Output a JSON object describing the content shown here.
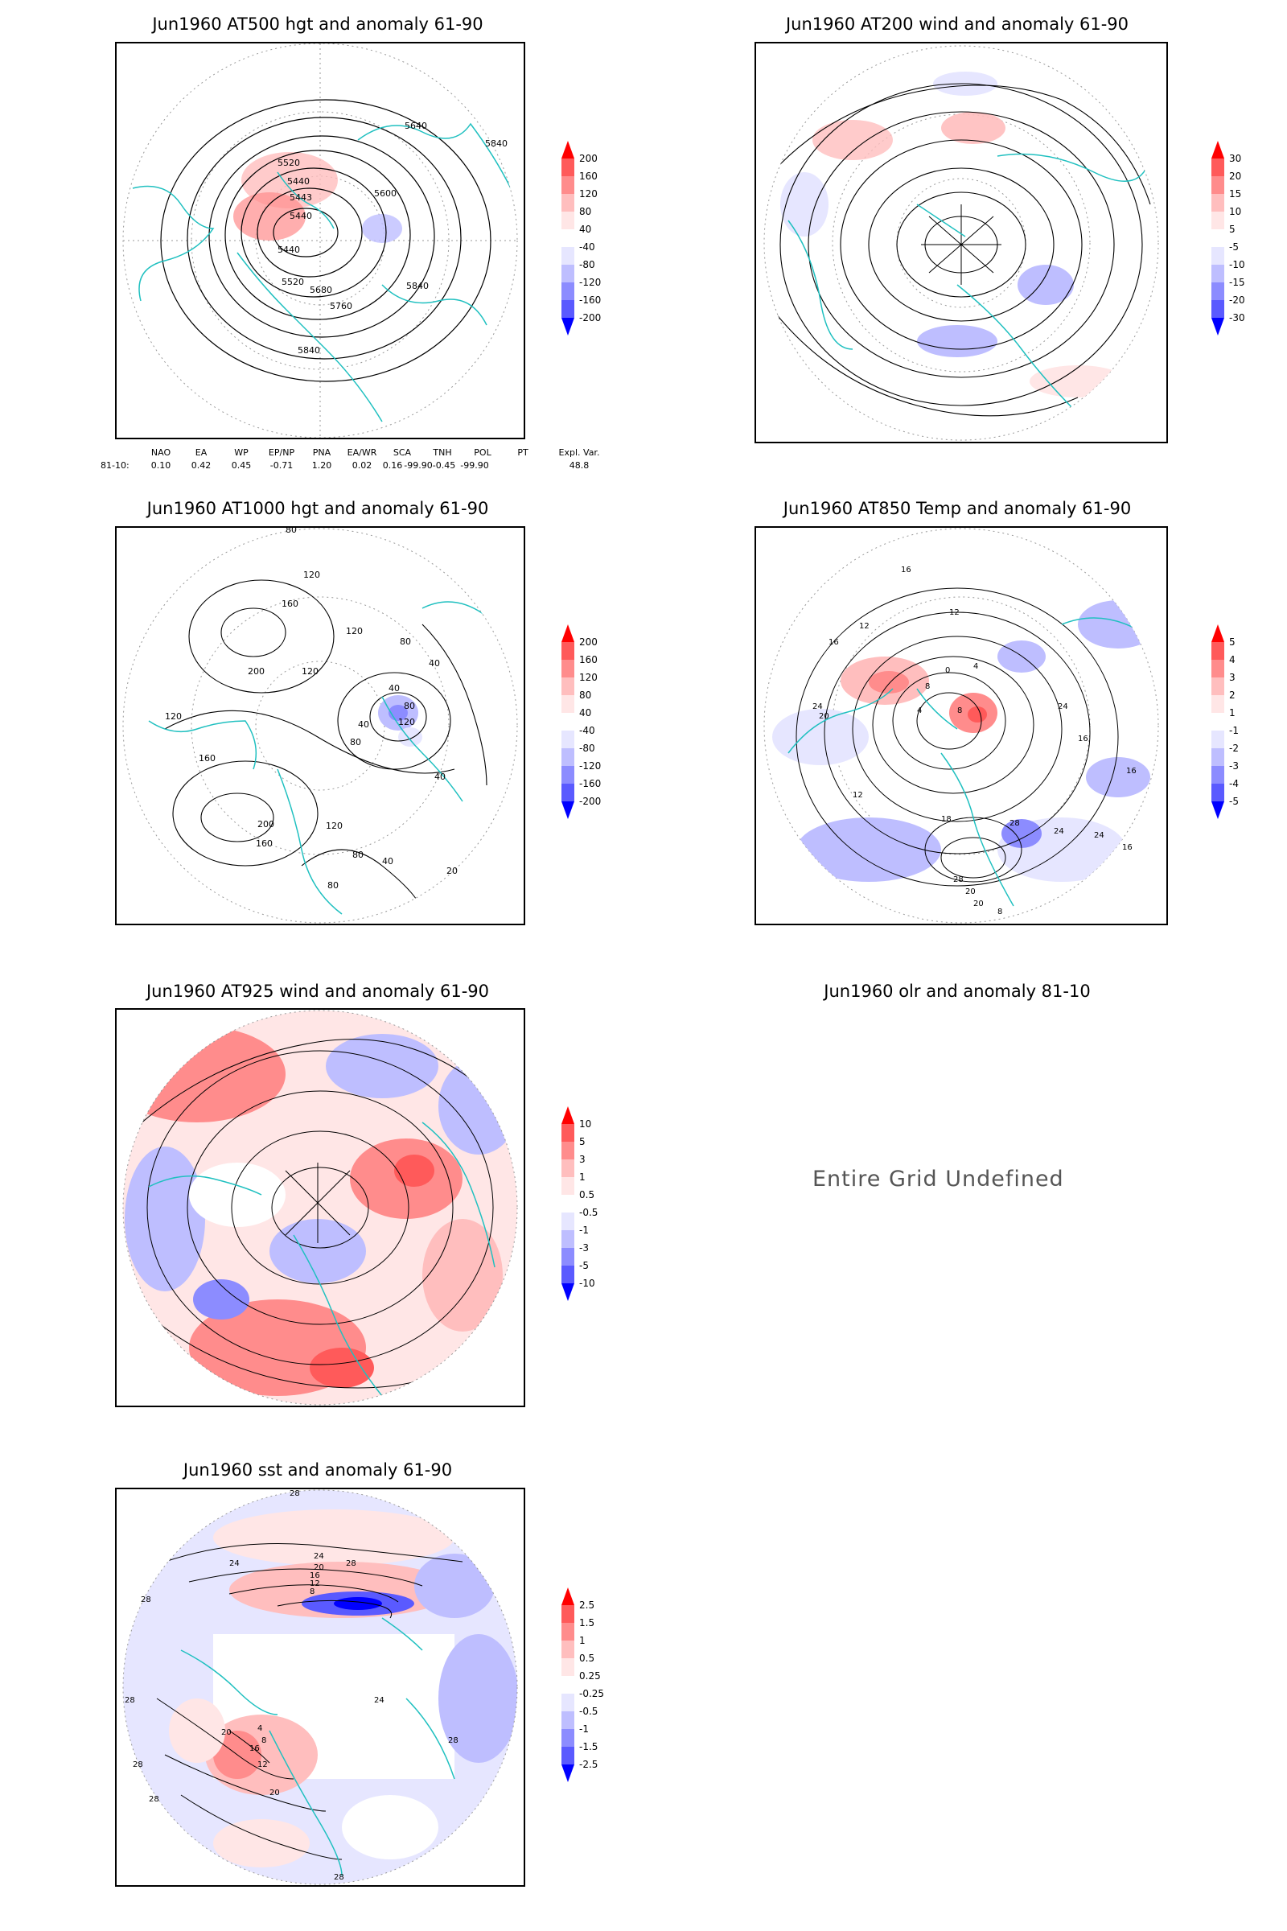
{
  "panels": {
    "p500": {
      "title": "Jun1960 AT500 hgt and anomaly 61-90",
      "contour_labels": [
        "5520",
        "5440",
        "5440",
        "5443",
        "5600",
        "5640",
        "5840",
        "5440",
        "5520",
        "5680",
        "5760",
        "5840",
        "5840"
      ],
      "colorbar": [
        "200",
        "160",
        "120",
        "80",
        "40",
        "-40",
        "-80",
        "-120",
        "-160",
        "-200"
      ]
    },
    "p200": {
      "title": "Jun1960 AT200 wind and anomaly 61-90",
      "colorbar": [
        "30",
        "20",
        "15",
        "10",
        "5",
        "-5",
        "-10",
        "-15",
        "-20",
        "-30"
      ]
    },
    "p1000": {
      "title": "Jun1960 AT1000 hgt and anomaly 61-90",
      "contour_labels": [
        "80",
        "120",
        "160",
        "200",
        "120",
        "120",
        "80",
        "40",
        "40",
        "80",
        "120",
        "40",
        "80",
        "120",
        "160",
        "200",
        "160",
        "120",
        "80",
        "40",
        "20",
        "40",
        "80"
      ],
      "colorbar": [
        "200",
        "160",
        "120",
        "80",
        "40",
        "-40",
        "-80",
        "-120",
        "-160",
        "-200"
      ]
    },
    "p850": {
      "title": "Jun1960 AT850 Temp and anomaly 61-90",
      "contour_labels": [
        "16",
        "12",
        "16",
        "12",
        "24",
        "20",
        "4",
        "8",
        "0",
        "4",
        "8",
        "24",
        "16",
        "12",
        "16",
        "18",
        "28",
        "24",
        "28",
        "20",
        "20",
        "24",
        "16",
        "8"
      ],
      "colorbar": [
        "5",
        "4",
        "3",
        "2",
        "1",
        "-1",
        "-2",
        "-3",
        "-4",
        "-5"
      ]
    },
    "p925": {
      "title": "Jun1960 AT925 wind and anomaly 61-90",
      "colorbar": [
        "10",
        "5",
        "3",
        "1",
        "0.5",
        "-0.5",
        "-1",
        "-3",
        "-5",
        "-10"
      ]
    },
    "polr": {
      "title": "Jun1960 olr and anomaly 81-10",
      "message": "Entire Grid Undefined"
    },
    "psst": {
      "title": "Jun1960 sst and anomaly 61-90",
      "contour_labels": [
        "28",
        "24",
        "28",
        "24",
        "20",
        "16",
        "12",
        "8",
        "28",
        "28",
        "20",
        "16",
        "12",
        "8",
        "4",
        "20",
        "28",
        "28",
        "24",
        "28",
        "28"
      ],
      "colorbar": [
        "2.5",
        "1.5",
        "1",
        "0.5",
        "0.25",
        "-0.25",
        "-0.5",
        "-1",
        "-1.5",
        "-2.5"
      ]
    }
  },
  "indices": {
    "headers": [
      "NAO",
      "EA",
      "WP",
      "EP/NP",
      "PNA",
      "EA/WR",
      "SCA",
      "TNH",
      "POL",
      "PT",
      "Expl. Var."
    ],
    "row_label": "81-10:",
    "values": [
      "0.10",
      "0.42",
      "0.45",
      "-0.71",
      "1.20",
      "0.02",
      "0.16",
      "-99.90",
      "-0.45",
      "-99.90",
      "48.8"
    ]
  },
  "colors": {
    "coast": "#20c0c0",
    "warm": [
      "#ff0000",
      "#ff5a5a",
      "#ff8c8c",
      "#ffbebe",
      "#ffe6e6"
    ],
    "cool": [
      "#e6e6ff",
      "#bebeff",
      "#8c8cff",
      "#5a5aff",
      "#0000ff"
    ]
  }
}
